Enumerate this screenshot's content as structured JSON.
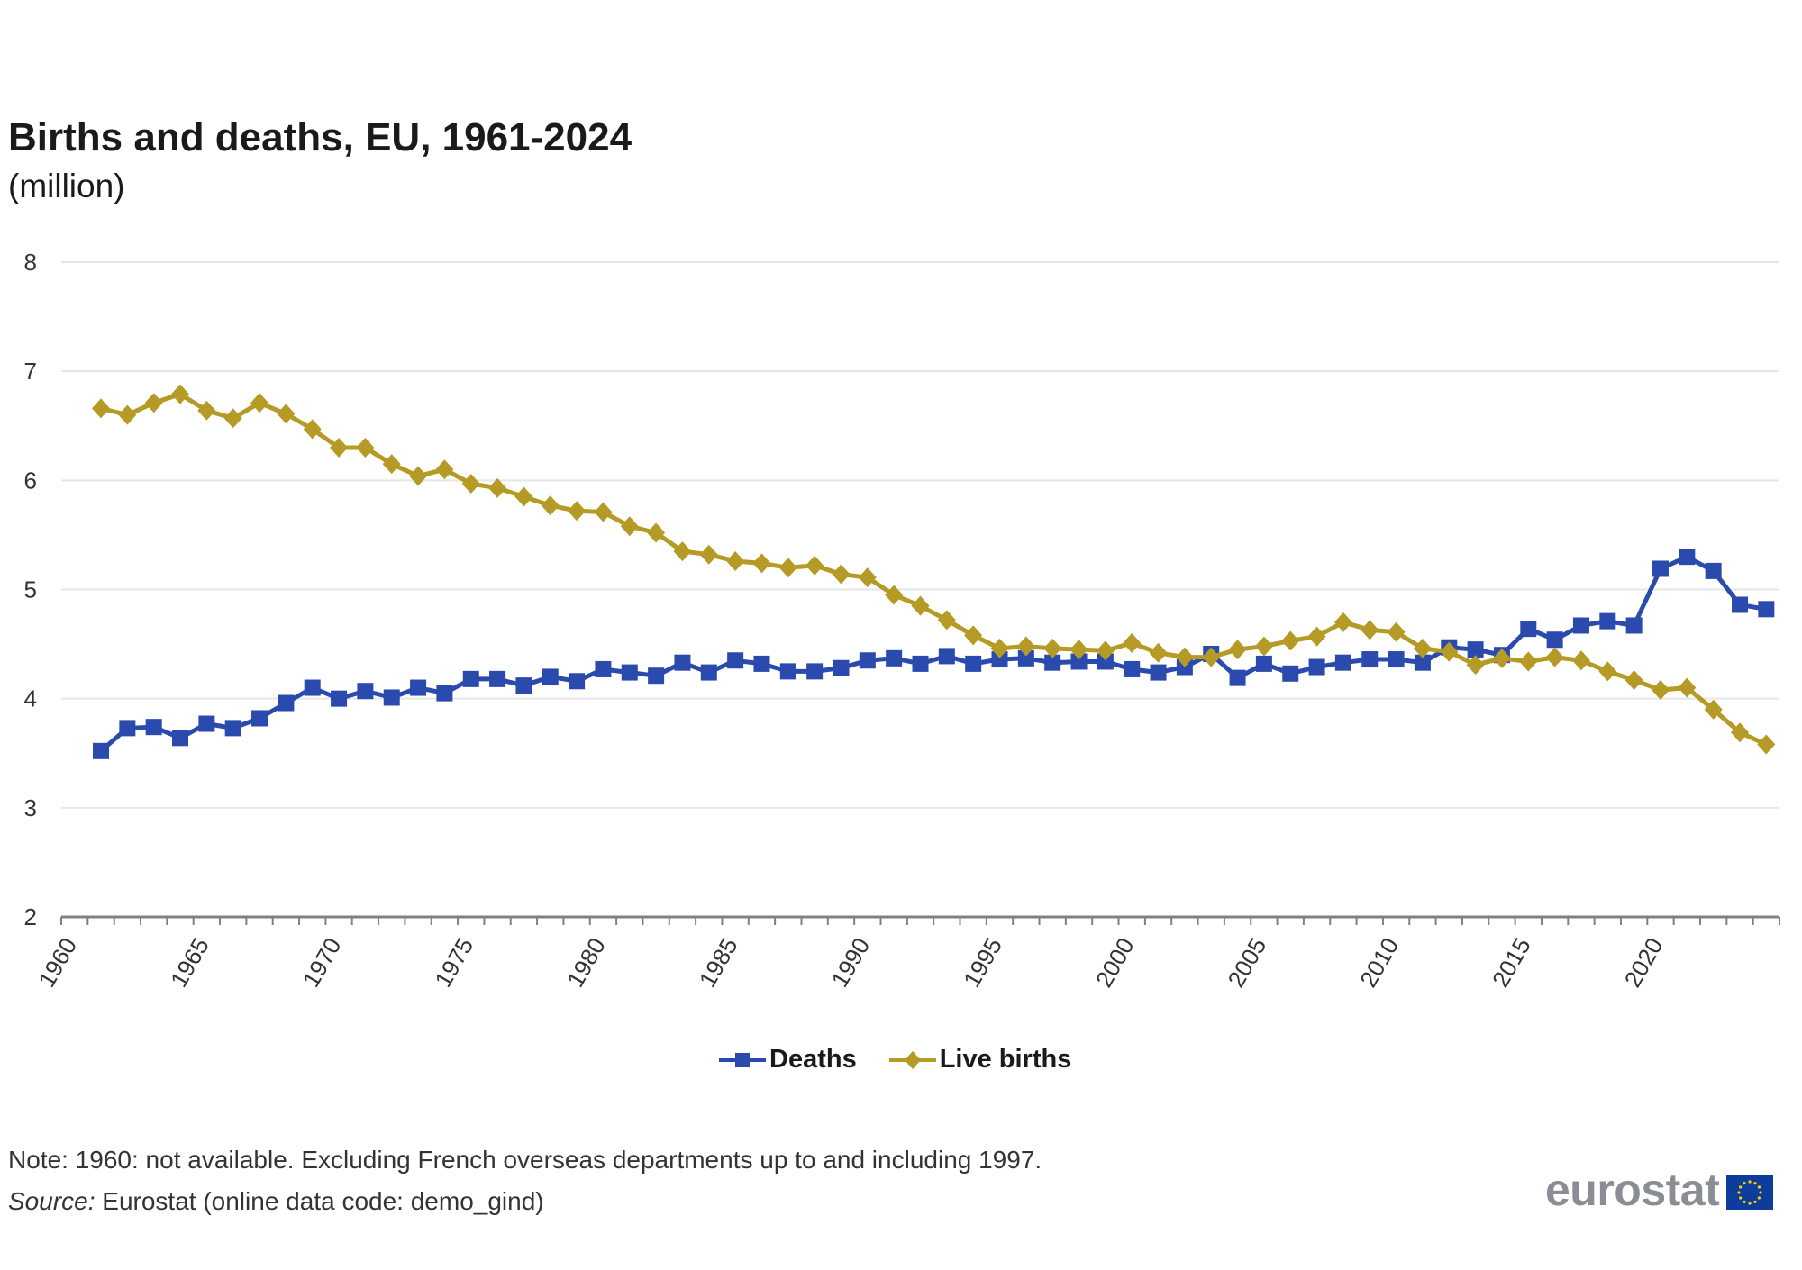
{
  "header": {
    "title": "Births and deaths, EU, 1961-2024",
    "subtitle": "(million)"
  },
  "legend": {
    "items": [
      {
        "label": "Deaths",
        "color": "#2b4aae",
        "marker": "square"
      },
      {
        "label": "Live births",
        "color": "#b59a26",
        "marker": "diamond"
      }
    ]
  },
  "footer": {
    "note": "Note: 1960: not available. Excluding French overseas  departments up to and including 1997.",
    "source_label": "Source:",
    "source_text": " Eurostat (online data code: demo_gind)",
    "logo_text": "eurostat",
    "logo_flag": "EU flag"
  },
  "chart_data": {
    "type": "line",
    "title": "Births and deaths, EU, 1961-2024",
    "subtitle": "(million)",
    "xlabel": "",
    "ylabel": "",
    "ylim": [
      2,
      8
    ],
    "yticks": [
      "2",
      "3",
      "4",
      "5",
      "6",
      "7",
      "8"
    ],
    "xrange": [
      1960,
      2024
    ],
    "xticks": [
      "1960",
      "1965",
      "1970",
      "1975",
      "1980",
      "1985",
      "1990",
      "1995",
      "2000",
      "2005",
      "2010",
      "2015",
      "2020"
    ],
    "grid": true,
    "legend_position": "bottom",
    "x": [
      1961,
      1962,
      1963,
      1964,
      1965,
      1966,
      1967,
      1968,
      1969,
      1970,
      1971,
      1972,
      1973,
      1974,
      1975,
      1976,
      1977,
      1978,
      1979,
      1980,
      1981,
      1982,
      1983,
      1984,
      1985,
      1986,
      1987,
      1988,
      1989,
      1990,
      1991,
      1992,
      1993,
      1994,
      1995,
      1996,
      1997,
      1998,
      1999,
      2000,
      2001,
      2002,
      2003,
      2004,
      2005,
      2006,
      2007,
      2008,
      2009,
      2010,
      2011,
      2012,
      2013,
      2014,
      2015,
      2016,
      2017,
      2018,
      2019,
      2020,
      2021,
      2022,
      2023,
      2024
    ],
    "series": [
      {
        "name": "Deaths",
        "color": "#2b4aae",
        "marker": "square",
        "values": [
          3.52,
          3.73,
          3.74,
          3.64,
          3.77,
          3.73,
          3.82,
          3.96,
          4.1,
          4.0,
          4.07,
          4.01,
          4.1,
          4.05,
          4.18,
          4.18,
          4.12,
          4.2,
          4.16,
          4.27,
          4.24,
          4.21,
          4.33,
          4.24,
          4.35,
          4.32,
          4.25,
          4.25,
          4.28,
          4.35,
          4.37,
          4.32,
          4.39,
          4.32,
          4.36,
          4.37,
          4.33,
          4.34,
          4.34,
          4.27,
          4.24,
          4.29,
          4.41,
          4.19,
          4.32,
          4.23,
          4.29,
          4.33,
          4.36,
          4.36,
          4.33,
          4.47,
          4.45,
          4.4,
          4.64,
          4.54,
          4.67,
          4.71,
          4.67,
          5.19,
          5.3,
          5.17,
          4.86,
          4.82
        ]
      },
      {
        "name": "Live births",
        "color": "#b59a26",
        "marker": "diamond",
        "values": [
          6.66,
          6.6,
          6.71,
          6.79,
          6.64,
          6.57,
          6.71,
          6.61,
          6.47,
          6.3,
          6.3,
          6.15,
          6.04,
          6.1,
          5.97,
          5.93,
          5.85,
          5.77,
          5.72,
          5.71,
          5.58,
          5.52,
          5.35,
          5.32,
          5.26,
          5.24,
          5.2,
          5.22,
          5.14,
          5.11,
          4.95,
          4.85,
          4.72,
          4.58,
          4.46,
          4.48,
          4.46,
          4.45,
          4.44,
          4.51,
          4.42,
          4.38,
          4.38,
          4.45,
          4.48,
          4.53,
          4.57,
          4.7,
          4.63,
          4.61,
          4.46,
          4.43,
          4.31,
          4.37,
          4.34,
          4.38,
          4.35,
          4.25,
          4.17,
          4.08,
          4.1,
          3.9,
          3.69,
          3.58
        ]
      }
    ]
  }
}
